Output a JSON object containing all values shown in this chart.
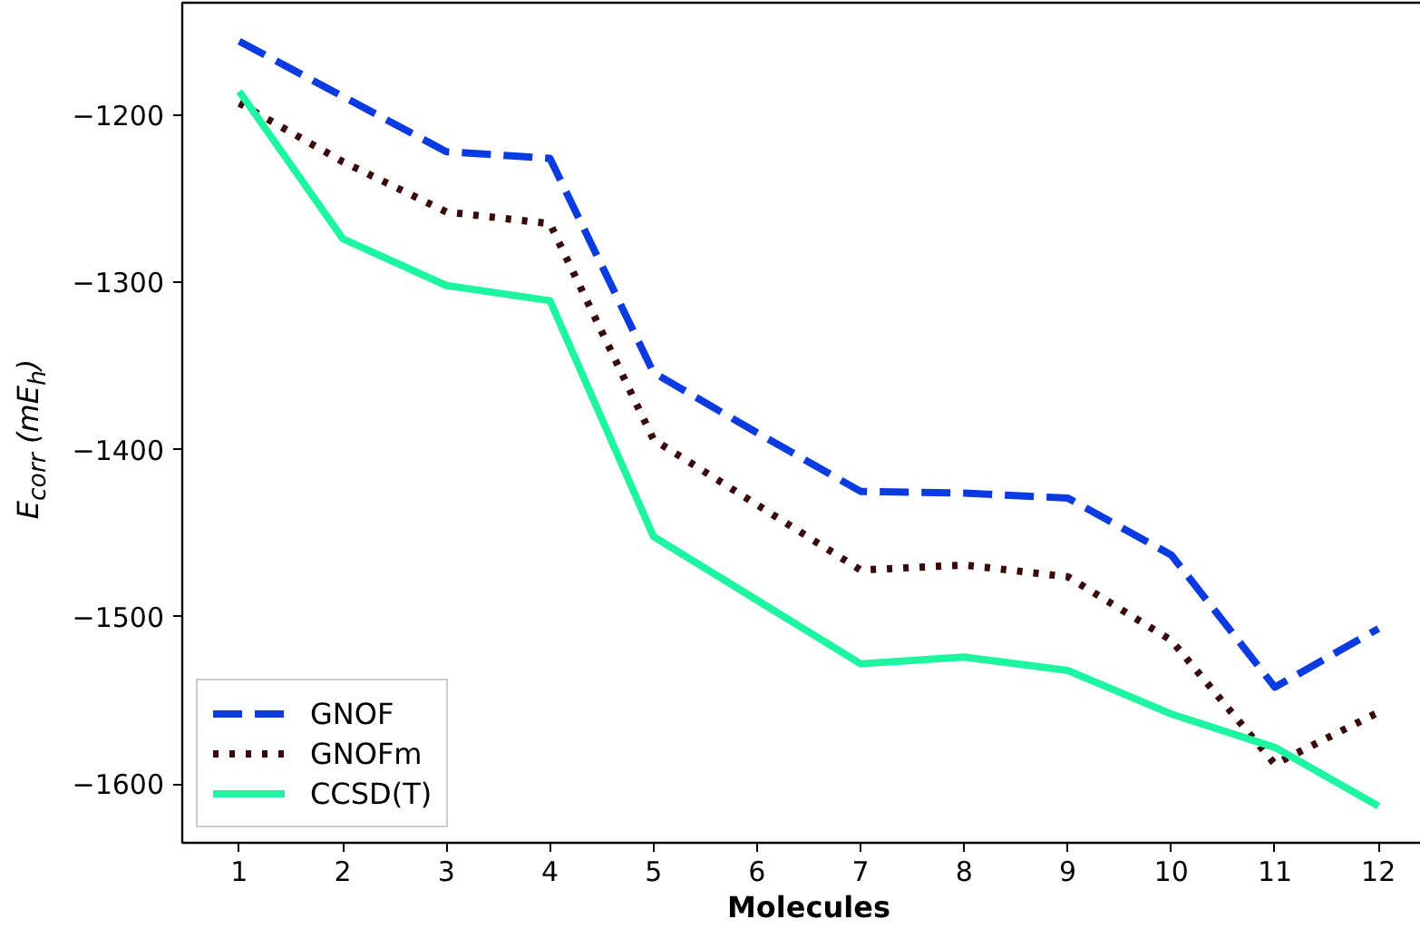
{
  "chart_data": {
    "type": "line",
    "xlabel": "Molecules",
    "ylabel": "E$_{corr}$ (mE$_{h}$)",
    "x": [
      1,
      2,
      3,
      4,
      5,
      6,
      7,
      8,
      9,
      10,
      11,
      12
    ],
    "series": [
      {
        "name": "GNOF",
        "color": "#0a3be0",
        "line_style": "dashed",
        "values": [
          -1156,
          -1189,
          -1222,
          -1226,
          -1354,
          -1390,
          -1425,
          -1426,
          -1429,
          -1463,
          -1542,
          -1507
        ]
      },
      {
        "name": "GNOFm",
        "color": "#3a0a0a",
        "line_style": "dotted",
        "values": [
          -1193,
          -1228,
          -1258,
          -1265,
          -1394,
          -1433,
          -1472,
          -1469,
          -1476,
          -1514,
          -1588,
          -1557
        ]
      },
      {
        "name": "CCSD(T)",
        "color": "#1ef5a0",
        "line_style": "solid",
        "values": [
          -1186,
          -1274,
          -1302,
          -1311,
          -1452,
          -1490,
          -1528,
          -1524,
          -1532,
          -1558,
          -1578,
          -1613
        ]
      }
    ],
    "xlim": [
      0.45,
      12.55
    ],
    "ylim": [
      -1635,
      -1133
    ],
    "xticks": [
      1,
      2,
      3,
      4,
      5,
      6,
      7,
      8,
      9,
      10,
      11,
      12
    ],
    "yticks": [
      -1600,
      -1500,
      -1400,
      -1300,
      -1200
    ],
    "grid": false,
    "legend": "bottom left",
    "marker": "none"
  }
}
